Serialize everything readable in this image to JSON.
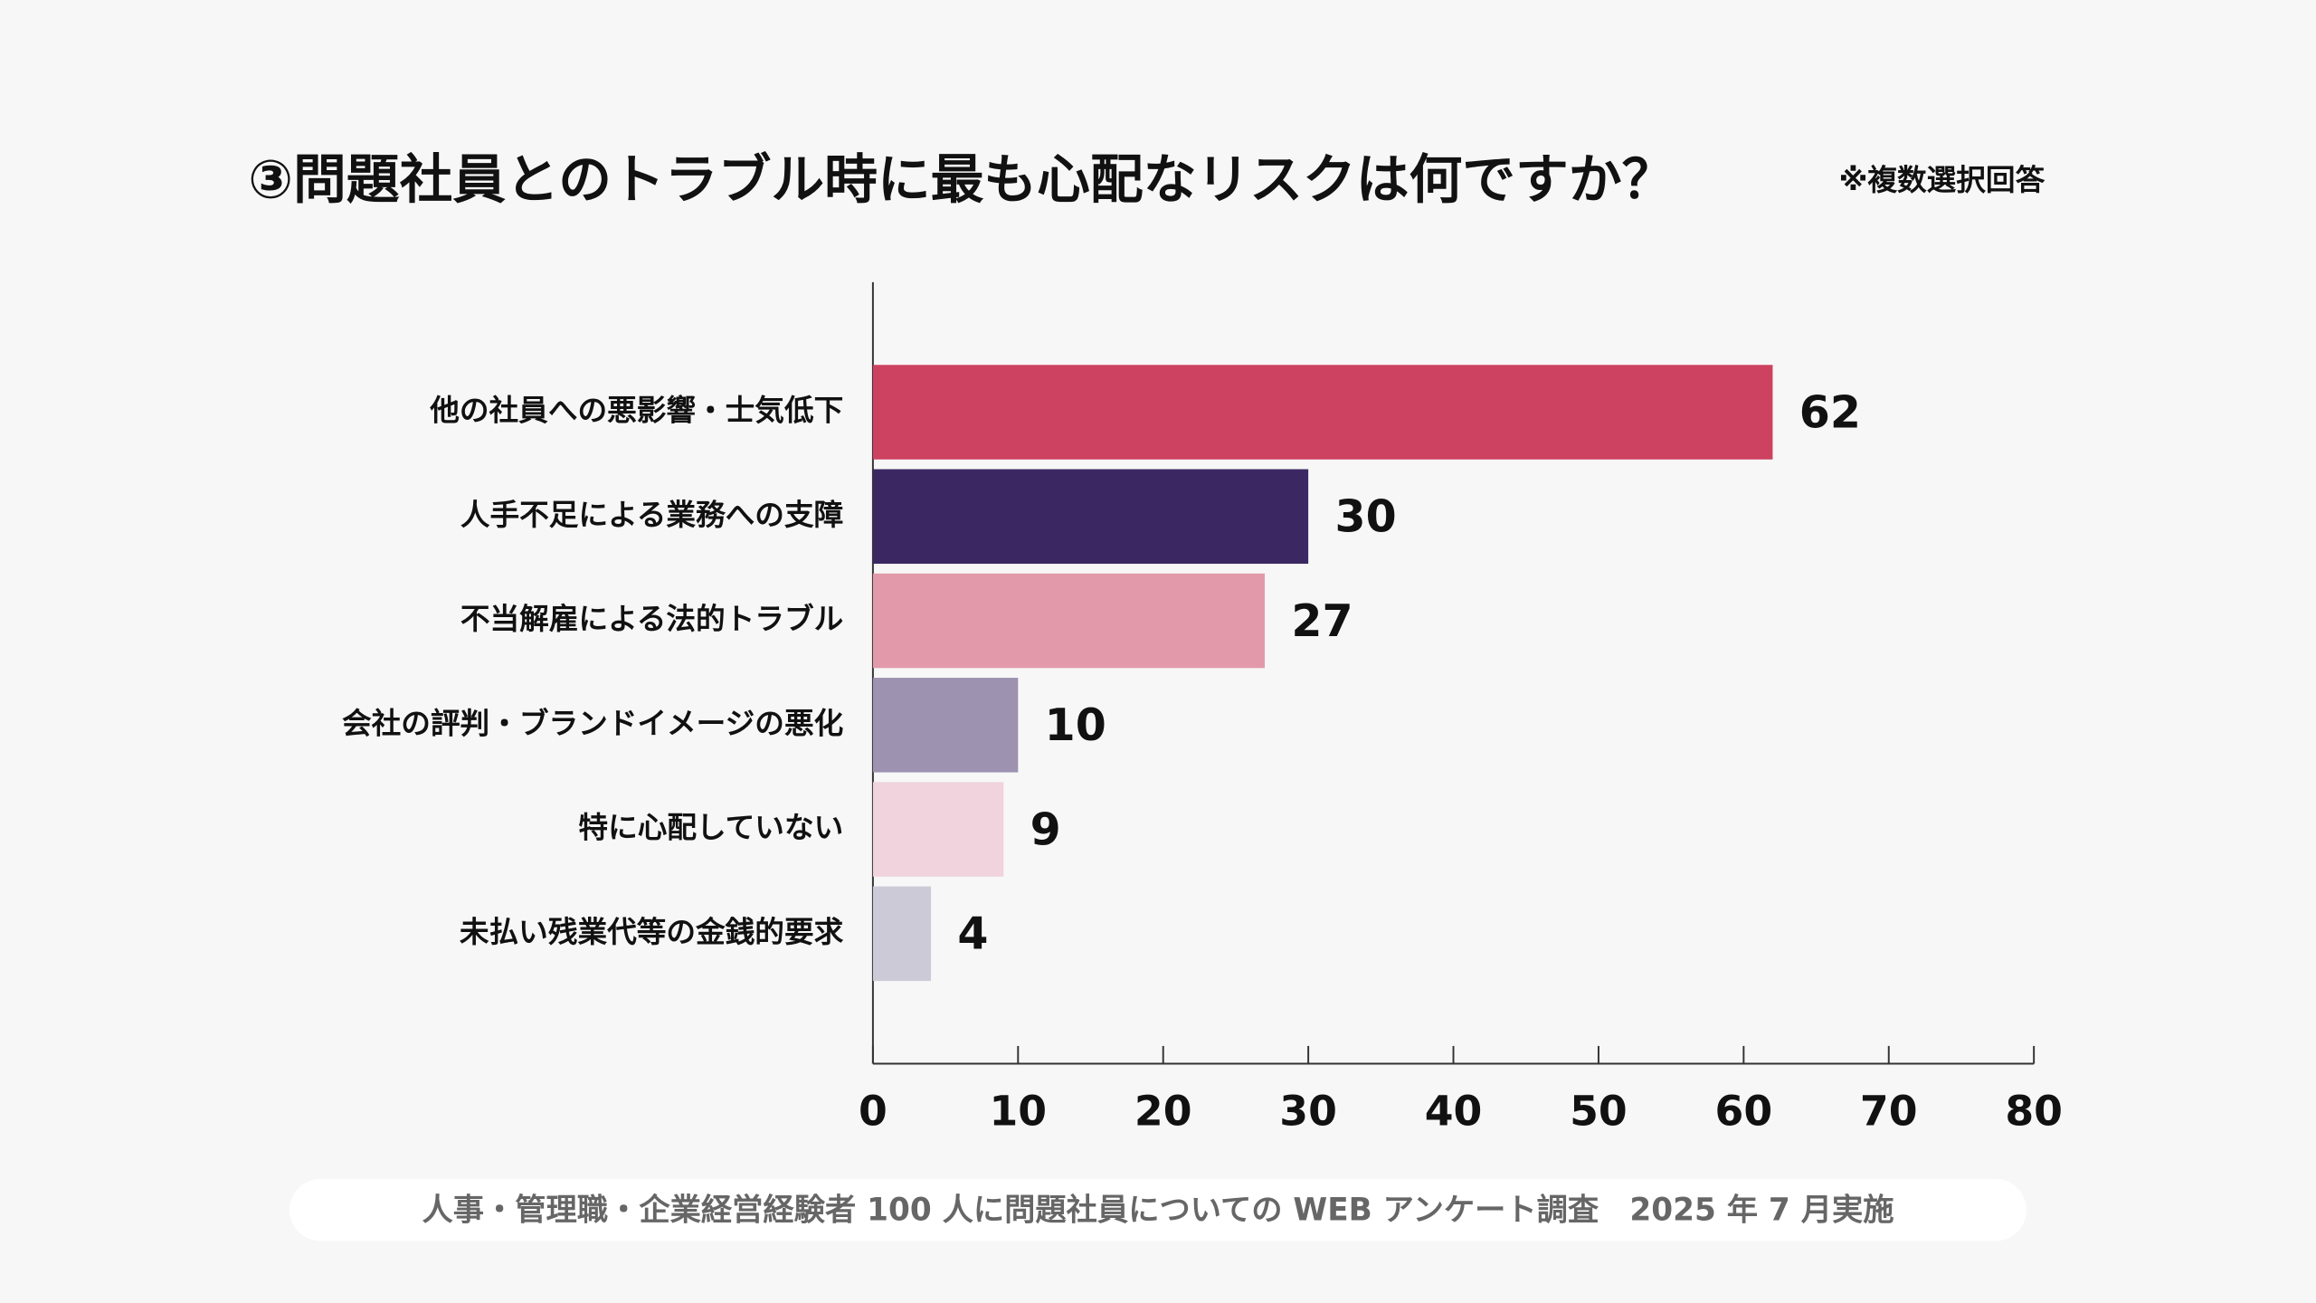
{
  "chart_data": {
    "type": "hbar",
    "title": "③問題社員とのトラブル時に最も心配なリスクは何ですか？",
    "note": "※複数選択回答",
    "source": "人事・管理職・企業経営経験者 100 人に問題社員についての WEB アンケート調査　2025 年 7 月実施",
    "categories": [
      "他の社員への悪影響・士気低下",
      "人手不足による業務への支障",
      "不当解雇による法的トラブル",
      "会社の評判・ブランドイメージの悪化",
      "特に心配していない",
      "未払い残業代等の金銭的要求"
    ],
    "values": [
      62,
      30,
      27,
      10,
      9,
      4
    ],
    "colors": [
      "#cc4260",
      "#3b2862",
      "#e29aaa",
      "#9d92b0",
      "#f0d3dc",
      "#cdcad8"
    ],
    "xlim": [
      0,
      80
    ],
    "xticks": [
      0,
      10,
      20,
      30,
      40,
      50,
      60,
      70,
      80
    ]
  }
}
